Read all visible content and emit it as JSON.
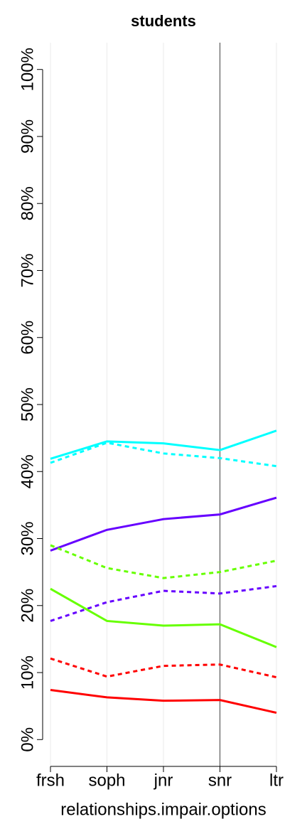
{
  "chart_data": {
    "type": "line",
    "title": "students",
    "x_label": "relationships.impair.options",
    "categories": [
      "frsh",
      "soph",
      "jnr",
      "snr",
      "ltr"
    ],
    "series": [
      {
        "color": "#00ffff",
        "dash": false,
        "values": [
          41.9,
          44.5,
          44.2,
          43.2,
          46.1
        ]
      },
      {
        "color": "#00ffff",
        "dash": true,
        "values": [
          41.3,
          44.3,
          42.7,
          42.0,
          40.8
        ]
      },
      {
        "color": "#6600ff",
        "dash": false,
        "values": [
          28.2,
          31.3,
          32.9,
          33.6,
          36.1
        ]
      },
      {
        "color": "#66ff00",
        "dash": true,
        "values": [
          29.0,
          25.6,
          24.1,
          25.0,
          26.7
        ]
      },
      {
        "color": "#6600ff",
        "dash": true,
        "values": [
          17.7,
          20.5,
          22.2,
          21.8,
          22.9
        ]
      },
      {
        "color": "#66ff00",
        "dash": false,
        "values": [
          22.5,
          17.7,
          17.0,
          17.2,
          13.8
        ]
      },
      {
        "color": "#ff0000",
        "dash": true,
        "values": [
          12.1,
          9.4,
          11.0,
          11.2,
          9.3
        ]
      },
      {
        "color": "#ff0000",
        "dash": false,
        "values": [
          7.4,
          6.3,
          5.8,
          5.9,
          4.0
        ]
      }
    ],
    "ylim": [
      -4,
      104
    ],
    "yticks": [
      {
        "value": 0,
        "label": "0%"
      },
      {
        "value": 10,
        "label": "10%"
      },
      {
        "value": 20,
        "label": "20%"
      },
      {
        "value": 30,
        "label": "30%"
      },
      {
        "value": 40,
        "label": "40%"
      },
      {
        "value": 50,
        "label": "50%"
      },
      {
        "value": 60,
        "label": "60%"
      },
      {
        "value": 70,
        "label": "70%"
      },
      {
        "value": 80,
        "label": "80%"
      },
      {
        "value": 90,
        "label": "90%"
      },
      {
        "value": 100,
        "label": "100%"
      }
    ],
    "grid": true,
    "highlight_category": 3
  }
}
